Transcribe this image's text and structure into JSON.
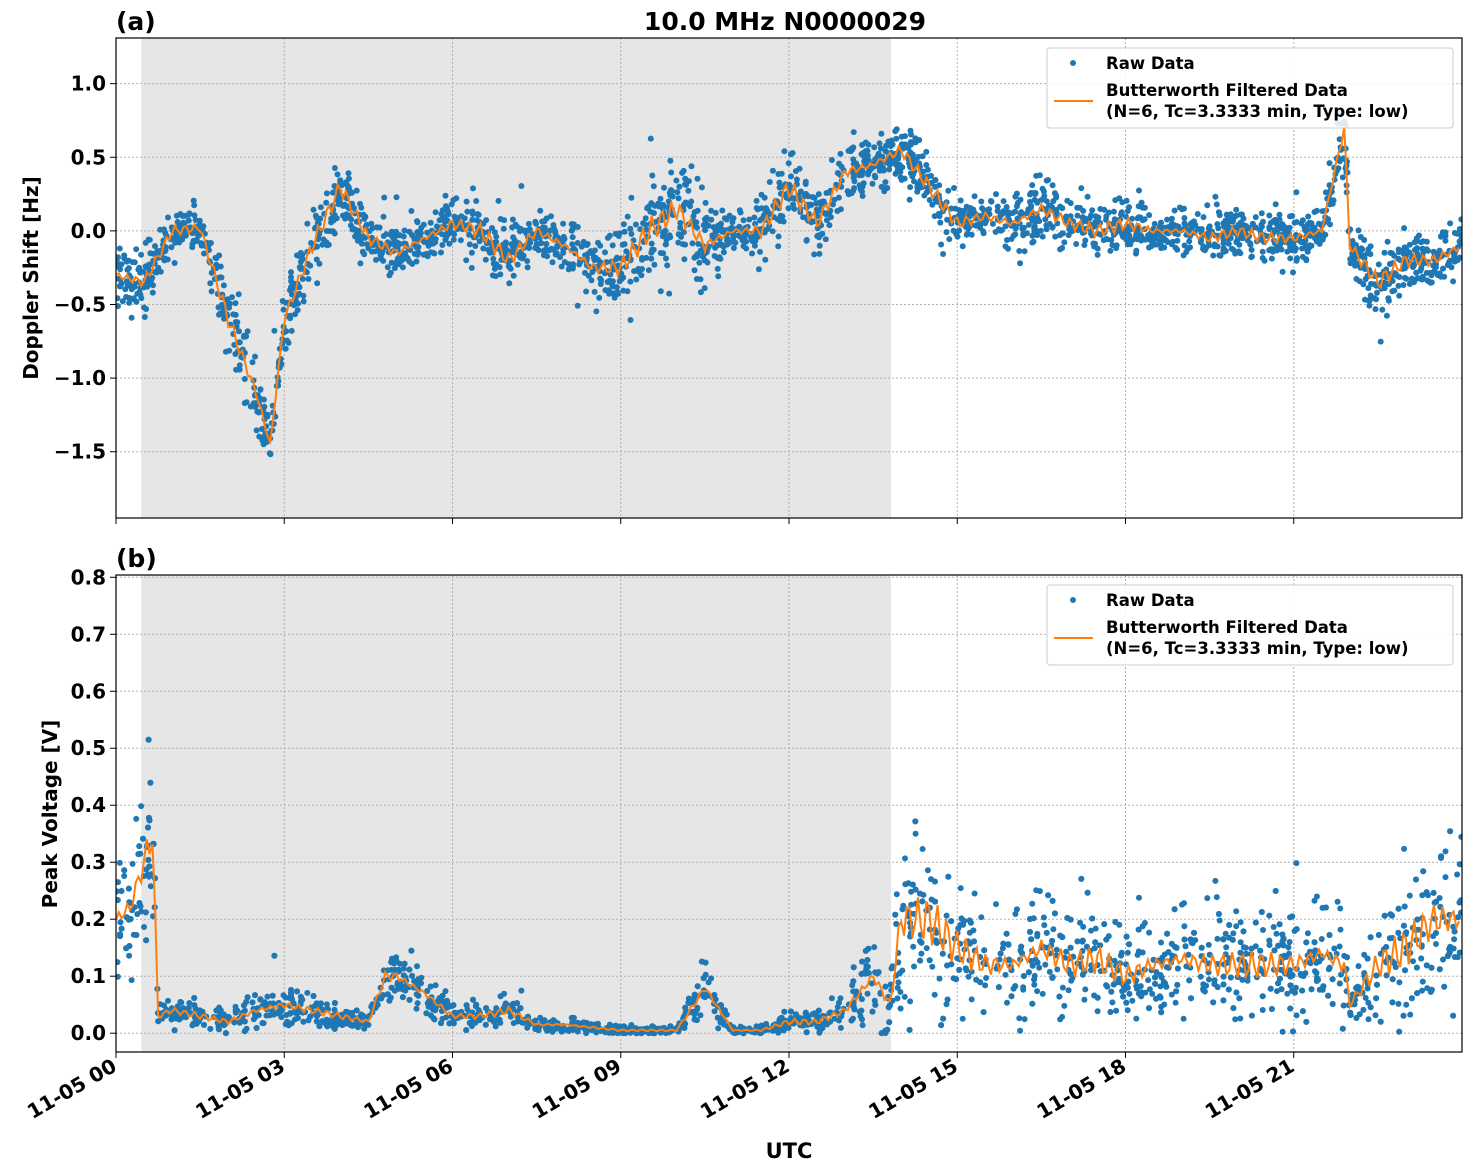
{
  "chart_data": [
    {
      "type": "scatter+line",
      "panel_label": "(a)",
      "title": "10.0 MHz N0000029",
      "xlabel": "",
      "ylabel": "Doppler Shift [Hz]",
      "ylim": [
        -1.95,
        1.31
      ],
      "yticks": [
        -1.5,
        -1.0,
        -0.5,
        0.0,
        0.5,
        1.0
      ],
      "ytick_labels": [
        "−1.5",
        "−1.0",
        "−0.5",
        "0.0",
        "0.5",
        "1.0"
      ],
      "xlim_hours": [
        0,
        24
      ],
      "grid": true,
      "legend_position": "top-right",
      "shaded_interval_hours": [
        0.45,
        13.82
      ],
      "colors": {
        "raw": "#1f77b4",
        "filtered": "#ff7f0e",
        "shade": "#e6e6e6"
      },
      "legend": [
        "Raw Data",
        "Butterworth Filtered Data",
        "(N=6, Tc=3.3333 min, Type: low)"
      ],
      "x_hours": [
        0,
        0.5,
        1,
        1.5,
        2,
        2.5,
        2.75,
        3,
        3.5,
        4,
        4.5,
        5,
        5.5,
        6,
        6.5,
        7,
        7.5,
        8,
        8.5,
        9,
        9.5,
        10,
        10.5,
        11,
        11.5,
        12,
        12.5,
        13,
        13.5,
        14,
        14.5,
        15,
        15.5,
        16,
        16.5,
        17,
        17.5,
        18,
        18.5,
        19,
        19.5,
        20,
        20.5,
        21,
        21.5,
        21.9,
        22,
        22.5,
        23,
        23.5,
        24
      ],
      "filtered": [
        -0.3,
        -0.35,
        0.0,
        0.02,
        -0.6,
        -1.1,
        -1.45,
        -0.6,
        -0.1,
        0.3,
        -0.05,
        -0.15,
        -0.05,
        0.05,
        0.0,
        -0.2,
        0.0,
        -0.1,
        -0.25,
        -0.25,
        0.0,
        0.15,
        -0.1,
        0.0,
        0.0,
        0.3,
        0.05,
        0.4,
        0.45,
        0.55,
        0.3,
        0.05,
        0.1,
        0.05,
        0.15,
        0.05,
        0.0,
        0.05,
        0.0,
        0.0,
        -0.05,
        0.0,
        -0.05,
        -0.05,
        0.0,
        0.7,
        -0.1,
        -0.35,
        -0.2,
        -0.2,
        -0.1
      ],
      "raw_spread": [
        0.3,
        0.3,
        0.2,
        0.15,
        0.4,
        0.4,
        0.3,
        0.4,
        0.35,
        0.3,
        0.25,
        0.3,
        0.2,
        0.25,
        0.3,
        0.3,
        0.25,
        0.25,
        0.3,
        0.35,
        0.5,
        0.5,
        0.5,
        0.15,
        0.3,
        0.4,
        0.3,
        0.35,
        0.25,
        0.3,
        0.3,
        0.25,
        0.2,
        0.3,
        0.35,
        0.25,
        0.25,
        0.3,
        0.2,
        0.2,
        0.25,
        0.2,
        0.25,
        0.25,
        0.2,
        0.4,
        0.3,
        0.35,
        0.25,
        0.25,
        0.25
      ]
    },
    {
      "type": "scatter+line",
      "panel_label": "(b)",
      "xlabel": "UTC",
      "ylabel": "Peak Voltage [V]",
      "ylim": [
        -0.033,
        0.804
      ],
      "yticks": [
        0.0,
        0.1,
        0.2,
        0.3,
        0.4,
        0.5,
        0.6,
        0.7,
        0.8
      ],
      "ytick_labels": [
        "0.0",
        "0.1",
        "0.2",
        "0.3",
        "0.4",
        "0.5",
        "0.6",
        "0.7",
        "0.8"
      ],
      "xticks_hours": [
        0,
        3,
        6,
        9,
        12,
        15,
        18,
        21
      ],
      "xtick_labels": [
        "11-05 00",
        "11-05 03",
        "11-05 06",
        "11-05 09",
        "11-05 12",
        "11-05 15",
        "11-05 18",
        "11-05 21"
      ],
      "xlim_hours": [
        0,
        24
      ],
      "grid": true,
      "legend_position": "top-right",
      "shaded_interval_hours": [
        0.45,
        13.82
      ],
      "colors": {
        "raw": "#1f77b4",
        "filtered": "#ff7f0e",
        "shade": "#e6e6e6"
      },
      "legend": [
        "Raw Data",
        "Butterworth Filtered Data",
        "(N=6, Tc=3.3333 min, Type: low)"
      ],
      "x_hours": [
        0,
        0.25,
        0.5,
        0.65,
        0.75,
        1,
        1.5,
        2,
        2.5,
        3,
        3.5,
        4,
        4.5,
        4.8,
        5,
        5.5,
        6,
        6.5,
        7,
        7.5,
        8,
        8.5,
        9,
        9.5,
        10,
        10.5,
        11,
        11.5,
        12,
        12.5,
        13,
        13.5,
        13.8,
        14,
        14.5,
        15,
        15.5,
        16,
        16.5,
        17,
        17.5,
        18,
        18.5,
        19,
        19.5,
        20,
        20.5,
        21,
        21.5,
        21.9,
        22,
        22.5,
        23,
        23.5,
        24
      ],
      "filtered": [
        0.2,
        0.22,
        0.3,
        0.35,
        0.03,
        0.04,
        0.03,
        0.02,
        0.04,
        0.05,
        0.04,
        0.03,
        0.02,
        0.1,
        0.1,
        0.07,
        0.03,
        0.03,
        0.04,
        0.015,
        0.015,
        0.01,
        0.005,
        0.005,
        0.005,
        0.08,
        0.005,
        0.005,
        0.02,
        0.02,
        0.04,
        0.1,
        0.05,
        0.2,
        0.2,
        0.15,
        0.12,
        0.12,
        0.15,
        0.12,
        0.13,
        0.1,
        0.12,
        0.13,
        0.12,
        0.12,
        0.12,
        0.12,
        0.14,
        0.12,
        0.05,
        0.12,
        0.15,
        0.2,
        0.2
      ],
      "raw_spread": [
        0.15,
        0.15,
        0.2,
        0.25,
        0.03,
        0.03,
        0.03,
        0.03,
        0.05,
        0.06,
        0.04,
        0.03,
        0.02,
        0.07,
        0.07,
        0.06,
        0.03,
        0.03,
        0.04,
        0.02,
        0.02,
        0.015,
        0.01,
        0.01,
        0.01,
        0.08,
        0.01,
        0.01,
        0.03,
        0.03,
        0.05,
        0.12,
        0.1,
        0.25,
        0.25,
        0.18,
        0.15,
        0.15,
        0.15,
        0.14,
        0.14,
        0.13,
        0.13,
        0.13,
        0.13,
        0.13,
        0.14,
        0.14,
        0.15,
        0.15,
        0.05,
        0.15,
        0.2,
        0.2,
        0.2
      ]
    }
  ]
}
